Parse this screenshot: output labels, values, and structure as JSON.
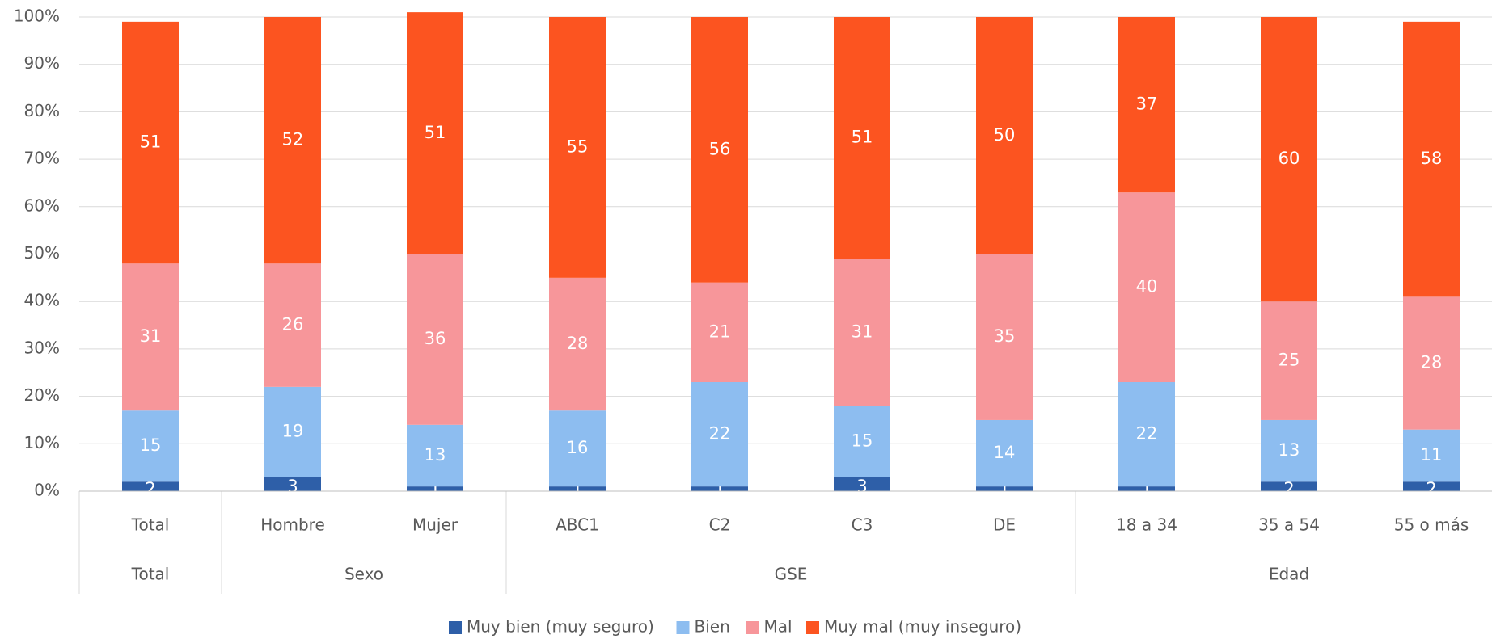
{
  "chart_data": {
    "type": "stacked_bar",
    "groups": [
      {
        "name": "Total",
        "categories": [
          "Total"
        ]
      },
      {
        "name": "Sexo",
        "categories": [
          "Hombre",
          "Mujer"
        ]
      },
      {
        "name": "GSE",
        "categories": [
          "ABC1",
          "C2",
          "C3",
          "DE"
        ]
      },
      {
        "name": "Edad",
        "categories": [
          "18 a 34",
          "35 a 54",
          "55 o más"
        ]
      }
    ],
    "series": [
      {
        "name": "Muy bien (muy seguro)",
        "color": "#2e5fa8",
        "values": [
          2,
          3,
          1,
          1,
          1,
          3,
          1,
          1,
          2,
          2
        ]
      },
      {
        "name": "Bien",
        "color": "#8dbdf0",
        "values": [
          15,
          19,
          13,
          16,
          22,
          15,
          14,
          22,
          13,
          11
        ]
      },
      {
        "name": "Mal",
        "color": "#f7969a",
        "values": [
          31,
          26,
          36,
          28,
          21,
          31,
          35,
          40,
          25,
          28
        ]
      },
      {
        "name": "Muy mal (muy inseguro)",
        "color": "#fc5420",
        "values": [
          51,
          52,
          51,
          55,
          56,
          51,
          50,
          37,
          60,
          58
        ]
      }
    ],
    "ylim": [
      0,
      100
    ],
    "yticks": [
      {
        "value": 0,
        "label": "0%"
      },
      {
        "value": 10,
        "label": "10%"
      },
      {
        "value": 20,
        "label": "20%"
      },
      {
        "value": 30,
        "label": "30%"
      },
      {
        "value": 40,
        "label": "40%"
      },
      {
        "value": 50,
        "label": "50%"
      },
      {
        "value": 60,
        "label": "60%"
      },
      {
        "value": 70,
        "label": "70%"
      },
      {
        "value": 80,
        "label": "80%"
      },
      {
        "value": 90,
        "label": "90%"
      },
      {
        "value": 100,
        "label": "100%"
      }
    ],
    "grid": true,
    "legend": "bottom"
  }
}
